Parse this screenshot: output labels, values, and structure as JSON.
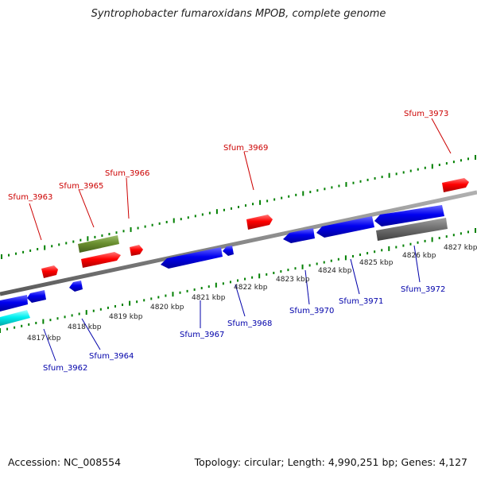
{
  "title": "Syntrophobacter fumaroxidans MPOB, complete genome",
  "footer": {
    "accession": "Accession: NC_008554",
    "summary": "Topology: circular; Length: 4,990,251 bp; Genes: 4,127"
  },
  "colors": {
    "backbone": "#808080",
    "forward_gene": "#ff0000",
    "reverse_gene": "#0000ff",
    "rna_gene": "#669933",
    "cyan_gene": "#00ffff",
    "gray_gene": "#666666",
    "tick": "#008000",
    "forward_label": "#cc0000",
    "reverse_label": "#0000aa"
  },
  "kbp_labels": [
    "4817 kbp",
    "4818 kbp",
    "4819 kbp",
    "4820 kbp",
    "4821 kbp",
    "4822 kbp",
    "4823 kbp",
    "4824 kbp",
    "4825 kbp",
    "4826 kbp",
    "4827 kbp"
  ],
  "gene_labels_top": [
    "Sfum_3963",
    "Sfum_3965",
    "Sfum_3966",
    "Sfum_3969",
    "Sfum_3973"
  ],
  "gene_labels_bottom": [
    "Sfum_3962",
    "Sfum_3964",
    "Sfum_3967",
    "Sfum_3968",
    "Sfum_3970",
    "Sfum_3971",
    "Sfum_3972"
  ]
}
